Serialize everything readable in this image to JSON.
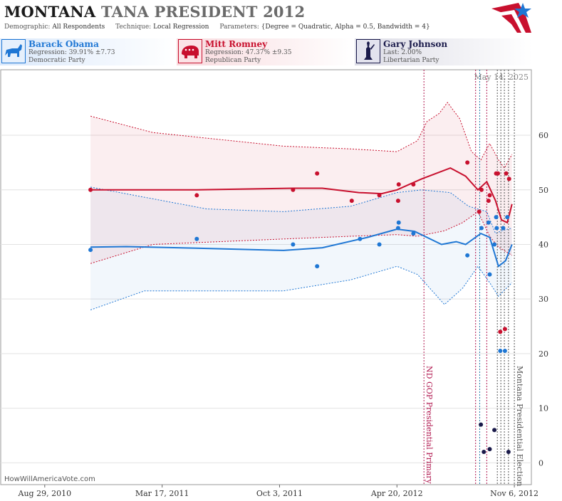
{
  "header": {
    "title_main": "MONTANA",
    "title_rest": "TANA PRESIDENT 2012",
    "demographic_label": "Demographic:",
    "demographic_value": "All Respondents",
    "technique_label": "Technique:",
    "technique_value": "Local Regression",
    "parameters_label": "Parameters:",
    "parameters_value": "{Degree = Quadratic, Alpha = 0.5, Bandwidth = 4}"
  },
  "candidates": [
    {
      "name": "Barack Obama",
      "line1": "Regression: 39.91% ±7.73",
      "line2": "Democratic Party",
      "color": "#1f77d4"
    },
    {
      "name": "Mitt Romney",
      "line1": "Regression: 47.37% ±9.35",
      "line2": "Republican Party",
      "color": "#c8102e"
    },
    {
      "name": "Gary Johnson",
      "line1": "Last: 2.00%",
      "line2": "Libertarian Party",
      "color": "#1a1a4a"
    }
  ],
  "footer": {
    "source": "HowWillAmericaVote.com"
  },
  "chart_data": {
    "type": "scatter",
    "date_label": "May 14, 2025",
    "x_axis": {
      "type": "date",
      "range": [
        "2010-06-15",
        "2012-12-05"
      ],
      "tick_labels": [
        {
          "date": "2010-08-29",
          "label": "Aug 29, 2010"
        },
        {
          "date": "2011-03-17",
          "label": "Mar 17, 2011"
        },
        {
          "date": "2011-10-03",
          "label": "Oct 3, 2011"
        },
        {
          "date": "2012-04-20",
          "label": "Apr 20, 2012"
        },
        {
          "date": "2012-11-06",
          "label": "Nov 6, 2012"
        }
      ]
    },
    "y_axis": {
      "range": [
        -4,
        72
      ],
      "ticks": [
        0,
        10,
        20,
        30,
        40,
        50,
        60
      ],
      "position": "right"
    },
    "grid": true,
    "event_lines": [
      {
        "date": "2012-06-05",
        "label": "ND GOP Presidential Primary",
        "color": "#b0174f"
      },
      {
        "date": "2012-11-06",
        "label": "Montana Presidential Election",
        "color": "#555555"
      }
    ],
    "extra_vlines": [
      {
        "date": "2012-09-01",
        "color": "#b0174f"
      },
      {
        "date": "2012-09-08",
        "color": "#2277aa"
      },
      {
        "date": "2012-09-20",
        "color": "#b0174f"
      },
      {
        "date": "2012-10-08",
        "color": "#555555"
      },
      {
        "date": "2012-10-14",
        "color": "#555555"
      },
      {
        "date": "2012-10-20",
        "color": "#555555"
      },
      {
        "date": "2012-10-27",
        "color": "#555555"
      }
    ],
    "series": [
      {
        "name": "Barack Obama",
        "color": "#1f77d4",
        "points": [
          {
            "date": "2010-11-15",
            "y": 39
          },
          {
            "date": "2011-05-15",
            "y": 41
          },
          {
            "date": "2011-10-26",
            "y": 40
          },
          {
            "date": "2011-12-06",
            "y": 36
          },
          {
            "date": "2012-02-17",
            "y": 41
          },
          {
            "date": "2012-03-21",
            "y": 40
          },
          {
            "date": "2012-04-22",
            "y": 43
          },
          {
            "date": "2012-04-23",
            "y": 44
          },
          {
            "date": "2012-05-18",
            "y": 42
          },
          {
            "date": "2012-08-18",
            "y": 38
          },
          {
            "date": "2012-09-11",
            "y": 43
          },
          {
            "date": "2012-09-23",
            "y": 44
          },
          {
            "date": "2012-09-25",
            "y": 34.5
          },
          {
            "date": "2012-10-03",
            "y": 40
          },
          {
            "date": "2012-10-06",
            "y": 45
          },
          {
            "date": "2012-10-07",
            "y": 43
          },
          {
            "date": "2012-10-13",
            "y": 20.5
          },
          {
            "date": "2012-10-18",
            "y": 43
          },
          {
            "date": "2012-10-21",
            "y": 20.5
          },
          {
            "date": "2012-10-25",
            "y": 45
          }
        ],
        "regression": [
          {
            "date": "2010-11-15",
            "y": 39.5
          },
          {
            "date": "2011-01-15",
            "y": 39.6
          },
          {
            "date": "2011-05-15",
            "y": 39.3
          },
          {
            "date": "2011-10-10",
            "y": 38.9
          },
          {
            "date": "2011-12-15",
            "y": 39.4
          },
          {
            "date": "2012-03-01",
            "y": 41.3
          },
          {
            "date": "2012-04-20",
            "y": 42.8
          },
          {
            "date": "2012-05-20",
            "y": 42.4
          },
          {
            "date": "2012-07-05",
            "y": 40.0
          },
          {
            "date": "2012-07-30",
            "y": 40.5
          },
          {
            "date": "2012-08-15",
            "y": 40.0
          },
          {
            "date": "2012-09-10",
            "y": 42.0
          },
          {
            "date": "2012-09-25",
            "y": 41.3
          },
          {
            "date": "2012-10-10",
            "y": 36.0
          },
          {
            "date": "2012-10-22",
            "y": 37.0
          },
          {
            "date": "2012-11-02",
            "y": 40.0
          }
        ],
        "band_upper": [
          {
            "date": "2010-11-15",
            "y": 50.5
          },
          {
            "date": "2011-06-01",
            "y": 46.5
          },
          {
            "date": "2011-10-10",
            "y": 46.0
          },
          {
            "date": "2012-02-01",
            "y": 47.0
          },
          {
            "date": "2012-04-20",
            "y": 49.5
          },
          {
            "date": "2012-06-01",
            "y": 50.0
          },
          {
            "date": "2012-07-20",
            "y": 49.5
          },
          {
            "date": "2012-08-20",
            "y": 47.0
          },
          {
            "date": "2012-09-20",
            "y": 46.0
          },
          {
            "date": "2012-10-05",
            "y": 42.0
          },
          {
            "date": "2012-10-15",
            "y": 42.5
          },
          {
            "date": "2012-11-02",
            "y": 43.0
          }
        ],
        "band_lower": [
          {
            "date": "2010-11-15",
            "y": 28.0
          },
          {
            "date": "2011-02-15",
            "y": 31.5
          },
          {
            "date": "2011-10-10",
            "y": 31.5
          },
          {
            "date": "2012-02-01",
            "y": 33.5
          },
          {
            "date": "2012-04-20",
            "y": 36.0
          },
          {
            "date": "2012-05-25",
            "y": 34.5
          },
          {
            "date": "2012-07-10",
            "y": 29.0
          },
          {
            "date": "2012-08-10",
            "y": 32.0
          },
          {
            "date": "2012-09-05",
            "y": 36.0
          },
          {
            "date": "2012-09-25",
            "y": 33.0
          },
          {
            "date": "2012-10-10",
            "y": 30.5
          },
          {
            "date": "2012-11-02",
            "y": 33.0
          }
        ]
      },
      {
        "name": "Mitt Romney",
        "color": "#c8102e",
        "points": [
          {
            "date": "2010-11-15",
            "y": 50
          },
          {
            "date": "2011-05-15",
            "y": 49
          },
          {
            "date": "2011-10-26",
            "y": 50
          },
          {
            "date": "2011-12-06",
            "y": 53
          },
          {
            "date": "2012-02-03",
            "y": 48
          },
          {
            "date": "2012-03-21",
            "y": 49
          },
          {
            "date": "2012-04-22",
            "y": 48
          },
          {
            "date": "2012-04-23",
            "y": 51
          },
          {
            "date": "2012-05-18",
            "y": 51
          },
          {
            "date": "2012-08-18",
            "y": 55
          },
          {
            "date": "2012-09-07",
            "y": 46
          },
          {
            "date": "2012-09-11",
            "y": 50
          },
          {
            "date": "2012-09-23",
            "y": 48
          },
          {
            "date": "2012-09-25",
            "y": 49
          },
          {
            "date": "2012-10-06",
            "y": 53
          },
          {
            "date": "2012-10-09",
            "y": 53
          },
          {
            "date": "2012-10-13",
            "y": 24
          },
          {
            "date": "2012-10-21",
            "y": 24.5
          },
          {
            "date": "2012-10-23",
            "y": 53
          },
          {
            "date": "2012-10-28",
            "y": 52
          }
        ],
        "regression": [
          {
            "date": "2010-11-15",
            "y": 50.0
          },
          {
            "date": "2011-05-15",
            "y": 50.0
          },
          {
            "date": "2011-10-26",
            "y": 50.3
          },
          {
            "date": "2011-12-15",
            "y": 50.3
          },
          {
            "date": "2012-02-15",
            "y": 49.5
          },
          {
            "date": "2012-03-25",
            "y": 49.3
          },
          {
            "date": "2012-04-20",
            "y": 50.0
          },
          {
            "date": "2012-06-01",
            "y": 52.0
          },
          {
            "date": "2012-07-20",
            "y": 54.0
          },
          {
            "date": "2012-08-15",
            "y": 52.5
          },
          {
            "date": "2012-09-05",
            "y": 50.0
          },
          {
            "date": "2012-09-20",
            "y": 51.5
          },
          {
            "date": "2012-10-05",
            "y": 48.0
          },
          {
            "date": "2012-10-15",
            "y": 44.5
          },
          {
            "date": "2012-10-25",
            "y": 44.0
          },
          {
            "date": "2012-11-02",
            "y": 47.4
          }
        ],
        "band_upper": [
          {
            "date": "2010-11-15",
            "y": 63.5
          },
          {
            "date": "2011-03-01",
            "y": 60.5
          },
          {
            "date": "2011-10-10",
            "y": 58.0
          },
          {
            "date": "2012-02-01",
            "y": 57.5
          },
          {
            "date": "2012-04-20",
            "y": 57.0
          },
          {
            "date": "2012-05-25",
            "y": 59.0
          },
          {
            "date": "2012-06-10",
            "y": 62.5
          },
          {
            "date": "2012-07-01",
            "y": 64.0
          },
          {
            "date": "2012-07-15",
            "y": 66.0
          },
          {
            "date": "2012-08-05",
            "y": 63.0
          },
          {
            "date": "2012-08-25",
            "y": 57.0
          },
          {
            "date": "2012-09-10",
            "y": 55.5
          },
          {
            "date": "2012-09-25",
            "y": 58.5
          },
          {
            "date": "2012-10-10",
            "y": 55.5
          },
          {
            "date": "2012-10-20",
            "y": 54.0
          },
          {
            "date": "2012-11-02",
            "y": 56.5
          }
        ],
        "band_lower": [
          {
            "date": "2010-11-15",
            "y": 36.5
          },
          {
            "date": "2011-03-01",
            "y": 40.0
          },
          {
            "date": "2011-10-10",
            "y": 41.0
          },
          {
            "date": "2012-02-01",
            "y": 41.5
          },
          {
            "date": "2012-04-20",
            "y": 41.8
          },
          {
            "date": "2012-05-25",
            "y": 41.5
          },
          {
            "date": "2012-07-10",
            "y": 42.5
          },
          {
            "date": "2012-08-10",
            "y": 44.0
          },
          {
            "date": "2012-09-05",
            "y": 46.0
          },
          {
            "date": "2012-09-25",
            "y": 41.5
          },
          {
            "date": "2012-10-10",
            "y": 39.5
          },
          {
            "date": "2012-11-02",
            "y": 38.0
          }
        ]
      },
      {
        "name": "Gary Johnson",
        "color": "#1a1a4a",
        "points": [
          {
            "date": "2012-09-10",
            "y": 7
          },
          {
            "date": "2012-09-15",
            "y": 2
          },
          {
            "date": "2012-09-25",
            "y": 2.5
          },
          {
            "date": "2012-10-03",
            "y": 6
          },
          {
            "date": "2012-10-27",
            "y": 2
          }
        ]
      }
    ]
  }
}
